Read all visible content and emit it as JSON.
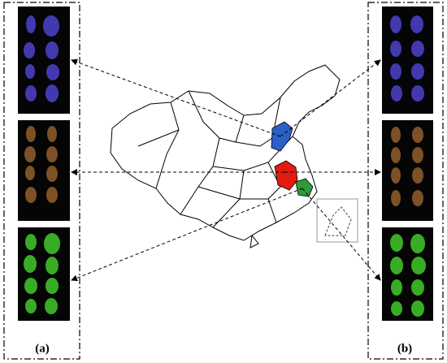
{
  "panels": {
    "left_label": "(a)",
    "right_label": "(b)"
  }
}
